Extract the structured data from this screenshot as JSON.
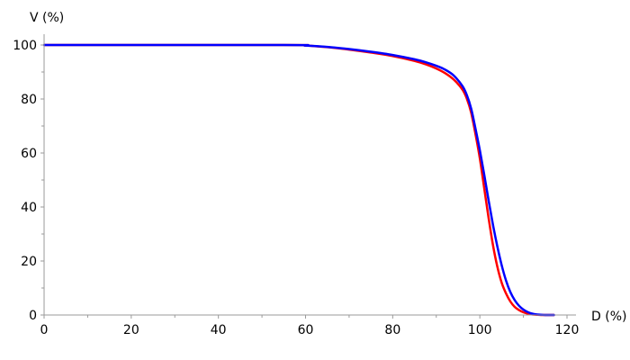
{
  "chart_data": {
    "type": "line",
    "xlabel": "D (%)",
    "ylabel": "V (%)",
    "xlim": [
      0,
      120
    ],
    "ylim": [
      0,
      100
    ],
    "x_ticks": [
      0,
      20,
      40,
      60,
      80,
      100,
      120
    ],
    "y_ticks": [
      0,
      20,
      40,
      60,
      80,
      100
    ],
    "x_tick_labels": [
      "0",
      "20",
      "40",
      "60",
      "80",
      "100",
      "120"
    ],
    "y_tick_labels": [
      "0",
      "20",
      "40",
      "60",
      "80",
      "100"
    ],
    "grid": false,
    "series": [
      {
        "color": "#ff0000",
        "x": [
          0,
          55,
          60,
          65,
          70,
          75,
          80,
          85,
          88,
          90,
          92,
          94,
          96,
          97,
          98,
          99,
          100,
          101,
          102,
          103,
          104,
          105,
          106,
          107,
          108,
          109,
          110,
          111,
          112,
          113,
          114,
          115,
          116,
          117
        ],
        "y": [
          100,
          100,
          99.8,
          99.2,
          98.3,
          97.2,
          95.9,
          94.1,
          92.6,
          91.3,
          89.6,
          87.2,
          83.5,
          80.2,
          75,
          67,
          58,
          47,
          36,
          26,
          18,
          12,
          8,
          5,
          3,
          1.8,
          1,
          0.5,
          0.2,
          0.1,
          0,
          0,
          0,
          0
        ]
      },
      {
        "color": "#0000ff",
        "x": [
          0,
          55,
          60,
          65,
          70,
          75,
          80,
          85,
          88,
          90,
          92,
          94,
          96,
          97,
          98,
          99,
          100,
          101,
          102,
          103,
          104,
          105,
          106,
          107,
          108,
          109,
          110,
          111,
          112,
          113,
          114,
          115,
          116,
          117
        ],
        "y": [
          100,
          100,
          99.8,
          99.3,
          98.5,
          97.5,
          96.3,
          94.7,
          93.4,
          92.3,
          90.9,
          88.7,
          84.8,
          81.5,
          76.5,
          69,
          61,
          52,
          42.5,
          33.5,
          25.5,
          18.5,
          12.8,
          8.5,
          5.5,
          3.4,
          2,
          1.1,
          0.5,
          0.2,
          0.1,
          0,
          0,
          0
        ]
      }
    ]
  }
}
